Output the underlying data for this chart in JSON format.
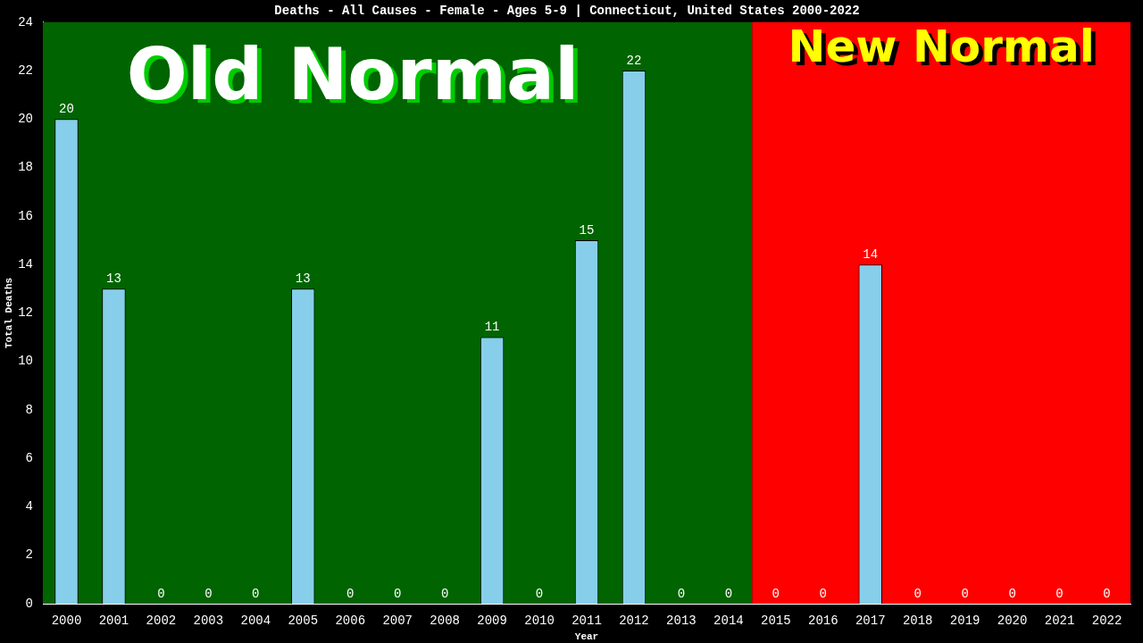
{
  "chart_data": {
    "type": "bar",
    "title": "Deaths - All Causes - Female - Ages 5-9 | Connecticut, United States 2000-2022",
    "xlabel": "Year",
    "ylabel": "Total Deaths",
    "categories": [
      "2000",
      "2001",
      "2002",
      "2003",
      "2004",
      "2005",
      "2006",
      "2007",
      "2008",
      "2009",
      "2010",
      "2011",
      "2012",
      "2013",
      "2014",
      "2015",
      "2016",
      "2017",
      "2018",
      "2019",
      "2020",
      "2021",
      "2022"
    ],
    "values": [
      20,
      13,
      0,
      0,
      0,
      13,
      0,
      0,
      0,
      11,
      0,
      15,
      22,
      0,
      0,
      0,
      0,
      14,
      0,
      0,
      0,
      0,
      0
    ],
    "color": "#87ceeb",
    "ylim": [
      0,
      24
    ],
    "yticks": [
      0,
      2,
      4,
      6,
      8,
      10,
      12,
      14,
      16,
      18,
      20,
      22,
      24
    ],
    "grid": false,
    "legend": false,
    "data_labels": true,
    "bands": [
      {
        "axis": "x",
        "from": "2000",
        "to": "2014",
        "label": "Old Normal",
        "color": "#006400"
      },
      {
        "axis": "x",
        "from": "2015",
        "to": "2022",
        "label": "New Normal",
        "color": "#ff0000"
      }
    ]
  }
}
